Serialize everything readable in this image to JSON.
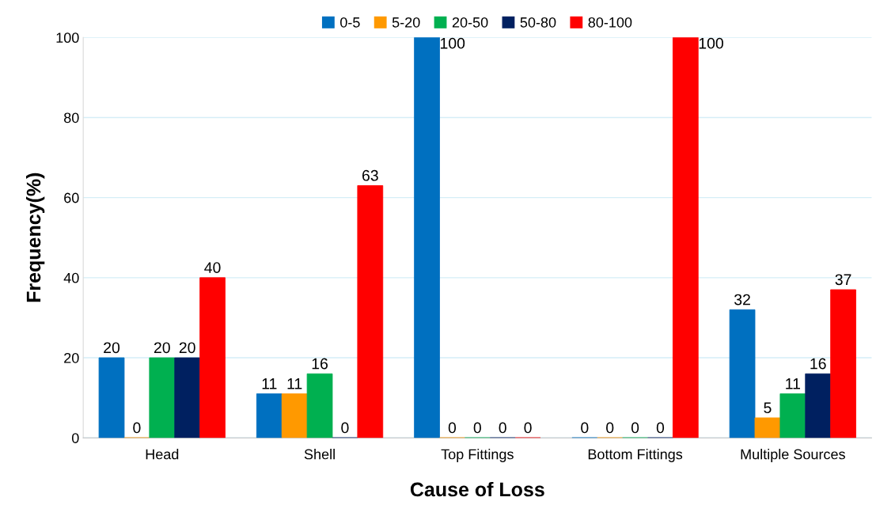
{
  "chart_data": {
    "type": "bar",
    "xlabel": "Cause of Loss",
    "ylabel": "Frequency(%)",
    "categories": [
      "Head",
      "Shell",
      "Top Fittings",
      "Bottom Fittings",
      "Multiple Sources"
    ],
    "series": [
      {
        "name": "0-5",
        "color": "#0070c0",
        "values": [
          20,
          11,
          100,
          0,
          32
        ]
      },
      {
        "name": "5-20",
        "color": "#ff9900",
        "values": [
          0,
          11,
          0,
          0,
          5
        ]
      },
      {
        "name": "20-50",
        "color": "#00b050",
        "values": [
          20,
          16,
          0,
          0,
          11
        ]
      },
      {
        "name": "50-80",
        "color": "#002060",
        "values": [
          20,
          0,
          0,
          0,
          16
        ]
      },
      {
        "name": "80-100",
        "color": "#ff0000",
        "values": [
          40,
          63,
          0,
          100,
          37
        ]
      }
    ],
    "ylim": [
      0,
      100
    ],
    "yticks": [
      0,
      20,
      40,
      60,
      80,
      100
    ],
    "grid": "y",
    "legend": "top",
    "data_labels": true
  }
}
